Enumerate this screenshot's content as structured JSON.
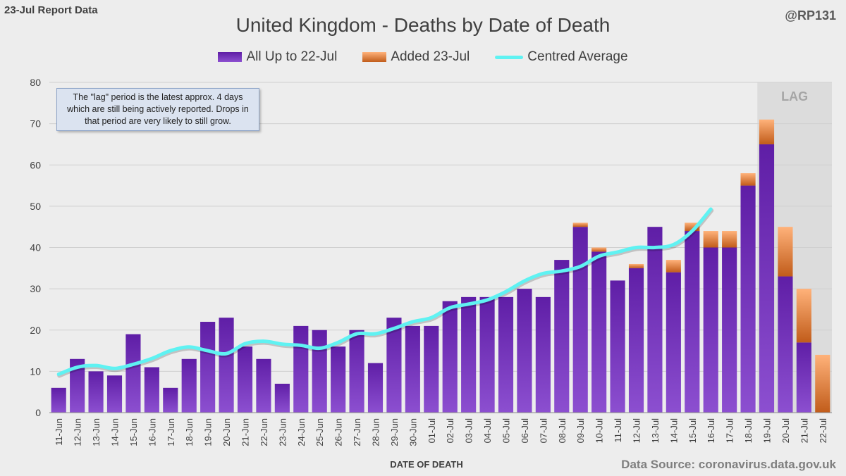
{
  "header": {
    "corner_label": "23-Jul Report Data",
    "handle": "@RP131",
    "title": "United Kingdom - Deaths by Date of Death"
  },
  "legend": {
    "purple_label": "All Up to 22-Jul",
    "orange_label": "Added 23-Jul",
    "line_label": "Centred Average"
  },
  "note": {
    "text": "The \"lag\" period is the latest approx. 4 days which are still being actively reported. Drops in that period are very likely to still grow."
  },
  "footer": {
    "xlabel": "DATE OF DEATH",
    "source": "Data Source: coronavirus.data.gov.uk"
  },
  "colors": {
    "purple_dark": "#5f1ea6",
    "purple_light": "#8c4fd0",
    "orange_dark": "#c15c1a",
    "orange_light": "#ffb27a",
    "line": "#5ff2f2",
    "lag_band": "#dcdcdc"
  },
  "chart_data": {
    "type": "bar",
    "stacked": true,
    "title": "United Kingdom - Deaths by Date of Death",
    "xlabel": "DATE OF DEATH",
    "ylabel": "",
    "ylim": [
      0,
      80
    ],
    "yticks": [
      0,
      10,
      20,
      30,
      40,
      50,
      60,
      70,
      80
    ],
    "grid": true,
    "categories": [
      "11-Jun",
      "12-Jun",
      "13-Jun",
      "14-Jun",
      "15-Jun",
      "16-Jun",
      "17-Jun",
      "18-Jun",
      "19-Jun",
      "20-Jun",
      "21-Jun",
      "22-Jun",
      "23-Jun",
      "24-Jun",
      "25-Jun",
      "26-Jun",
      "27-Jun",
      "28-Jun",
      "29-Jun",
      "30-Jun",
      "01-Jul",
      "02-Jul",
      "03-Jul",
      "04-Jul",
      "05-Jul",
      "06-Jul",
      "07-Jul",
      "08-Jul",
      "09-Jul",
      "10-Jul",
      "11-Jul",
      "12-Jul",
      "13-Jul",
      "14-Jul",
      "15-Jul",
      "16-Jul",
      "17-Jul",
      "18-Jul",
      "19-Jul",
      "20-Jul",
      "21-Jul",
      "22-Jul"
    ],
    "series": [
      {
        "name": "All Up to 22-Jul",
        "values": [
          6,
          13,
          10,
          9,
          19,
          11,
          6,
          13,
          22,
          23,
          16,
          13,
          7,
          21,
          20,
          16,
          20,
          12,
          23,
          21,
          21,
          27,
          28,
          28,
          28,
          30,
          28,
          37,
          45,
          39,
          32,
          35,
          45,
          34,
          44,
          40,
          40,
          55,
          65,
          33,
          17,
          0
        ]
      },
      {
        "name": "Added 23-Jul",
        "values": [
          0,
          0,
          0,
          0,
          0,
          0,
          0,
          0,
          0,
          0,
          0,
          0,
          0,
          0,
          0,
          0,
          0,
          0,
          0,
          0,
          0,
          0,
          0,
          0,
          0,
          0,
          0,
          0,
          1,
          1,
          0,
          1,
          0,
          3,
          2,
          4,
          4,
          3,
          6,
          12,
          13,
          14
        ]
      },
      {
        "name": "Centred Average",
        "type": "line",
        "values": [
          9.3,
          11.0,
          11.4,
          10.7,
          11.7,
          13.1,
          15.0,
          15.9,
          15.0,
          14.3,
          16.7,
          17.3,
          16.6,
          16.3,
          15.6,
          17.0,
          19.1,
          19.1,
          20.4,
          22.0,
          23.0,
          25.4,
          26.3,
          27.3,
          29.3,
          31.9,
          33.7,
          34.3,
          35.4,
          37.9,
          38.9,
          40.0,
          40.0,
          40.7,
          44.0,
          49.3,
          null,
          null,
          null,
          null,
          null,
          null
        ]
      }
    ],
    "lag_band": {
      "label": "LAG",
      "from": "19-Jul",
      "to": "22-Jul"
    }
  }
}
